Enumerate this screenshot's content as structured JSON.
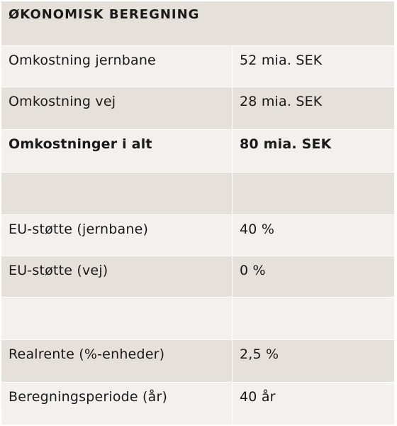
{
  "table": {
    "title": "ØKONOMISK BEREGNING",
    "rows": [
      {
        "label": "Omkostning jernbane",
        "value": "52 mia. SEK",
        "bold": false
      },
      {
        "label": "Omkostning vej",
        "value": "28 mia. SEK",
        "bold": false
      },
      {
        "label": "Omkostninger i alt",
        "value": "80 mia. SEK",
        "bold": true
      },
      {
        "label": "",
        "value": "",
        "bold": false
      },
      {
        "label": "EU-støtte (jernbane)",
        "value": "40 %",
        "bold": false
      },
      {
        "label": "EU-støtte (vej)",
        "value": "0 %",
        "bold": false
      },
      {
        "label": "",
        "value": "",
        "bold": false
      },
      {
        "label": "Realrente (%-enheder)",
        "value": "2,5 %",
        "bold": false
      },
      {
        "label": "Beregningsperiode (år)",
        "value": "40 år",
        "bold": false
      }
    ]
  },
  "colors": {
    "row_dark": "#e6e0db",
    "row_light": "#f3f0ed",
    "text": "#1a1a1a"
  }
}
